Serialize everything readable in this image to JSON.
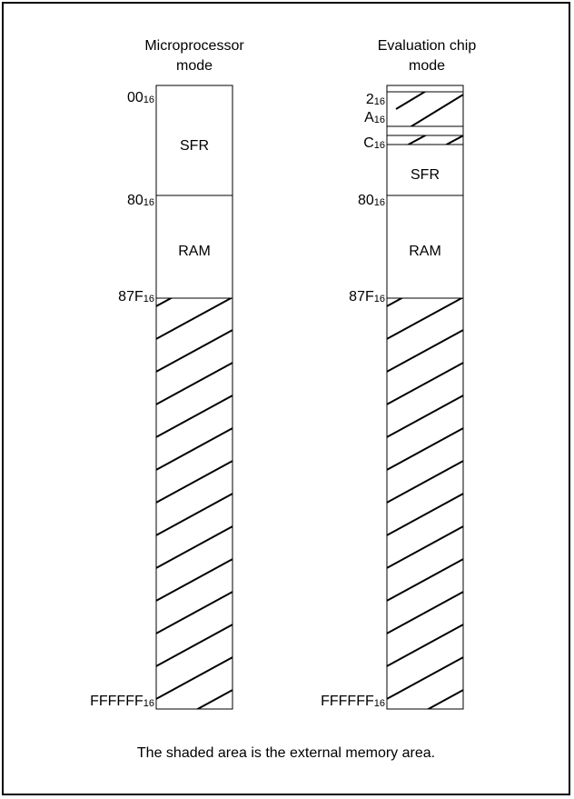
{
  "columns": {
    "left": {
      "title_line1": "Microprocessor",
      "title_line2": "mode",
      "regions": {
        "sfr": "SFR",
        "ram": "RAM"
      },
      "addresses": [
        {
          "base": "00",
          "sub": "16"
        },
        {
          "base": "80",
          "sub": "16"
        },
        {
          "base": "87F",
          "sub": "16"
        },
        {
          "base": "FFFFFF",
          "sub": "16"
        }
      ]
    },
    "right": {
      "title_line1": "Evaluation chip",
      "title_line2": "mode",
      "regions": {
        "sfr": "SFR",
        "ram": "RAM"
      },
      "addresses": [
        {
          "base": "2",
          "sub": "16"
        },
        {
          "base": "A",
          "sub": "16"
        },
        {
          "base": "C",
          "sub": "16"
        },
        {
          "base": "80",
          "sub": "16"
        },
        {
          "base": "87F",
          "sub": "16"
        },
        {
          "base": "FFFFFF",
          "sub": "16"
        }
      ]
    }
  },
  "caption": "The shaded area is the external memory area."
}
